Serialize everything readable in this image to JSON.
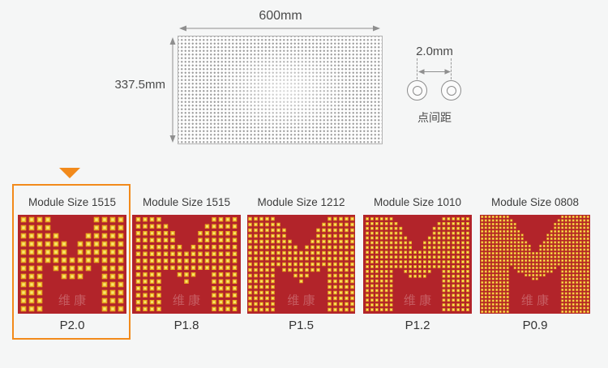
{
  "page": {
    "background": "#f5f6f6"
  },
  "diagram": {
    "panel": {
      "width_label": "600mm",
      "height_label": "337.5mm"
    },
    "pitch": {
      "label": "2.0mm",
      "caption": "点间距"
    }
  },
  "modules": {
    "watermark": "维康",
    "items": [
      {
        "title": "Module Size 1515",
        "pitch_label": "P2.0",
        "selected": true,
        "cell": 10,
        "dot": 6.6
      },
      {
        "title": "Module Size 1515",
        "pitch_label": "P1.8",
        "selected": false,
        "cell": 8.5,
        "dot": 5.5
      },
      {
        "title": "Module Size 1212",
        "pitch_label": "P1.5",
        "selected": false,
        "cell": 7,
        "dot": 4.5
      },
      {
        "title": "Module Size 1010",
        "pitch_label": "P1.2",
        "selected": false,
        "cell": 5.9,
        "dot": 3.7
      },
      {
        "title": "Module Size 0808",
        "pitch_label": "P0.9",
        "selected": false,
        "cell": 4.5,
        "dot": 2.9
      }
    ],
    "colors": {
      "module_bg": "#b2242a",
      "dot_outer": "#e9a81e",
      "dot_inner": "#f8e76e",
      "highlight": "#f28a1b",
      "panel_dot": "#9b9b9b"
    }
  }
}
